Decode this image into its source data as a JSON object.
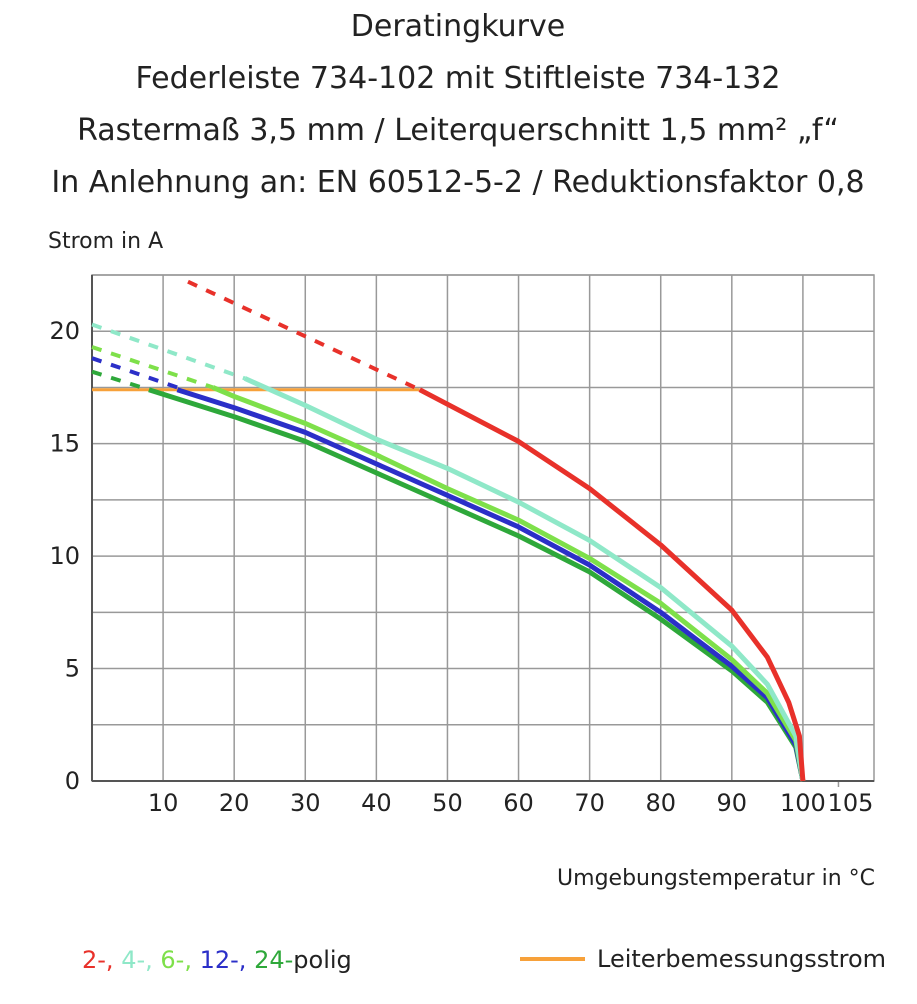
{
  "chart_data": {
    "type": "line",
    "title_lines": [
      "Deratingkurve",
      "Federleiste 734-102 mit Stiftleiste 734-132",
      "Rastermaß 3,5 mm / Leiterquerschnitt 1,5 mm² „f“",
      "In Anlehnung an: EN 60512-5-2 / Reduktionsfaktor 0,8"
    ],
    "ylabel": "Strom in A",
    "xlabel": "Umgebungstemperatur in °C",
    "xlim": [
      0,
      110
    ],
    "xticks": [
      10,
      20,
      30,
      40,
      50,
      60,
      70,
      80,
      90,
      100,
      105
    ],
    "ylim": [
      0,
      22.5
    ],
    "yticks": [
      0,
      5,
      10,
      15,
      20
    ],
    "yminor": [
      2.5,
      7.5,
      12.5,
      17.5,
      22.5
    ],
    "grid": true,
    "legend_suffix": "polig",
    "series": [
      {
        "name": "2-,",
        "color": "#e8312a",
        "dash_x": [
          13.5,
          46.1
        ],
        "dash_values": [
          22.2,
          17.4
        ],
        "x": [
          46.1,
          60,
          70,
          80,
          90,
          95,
          98,
          99.5,
          100
        ],
        "values": [
          17.4,
          15.1,
          13.0,
          10.5,
          7.6,
          5.5,
          3.5,
          2,
          0
        ]
      },
      {
        "name": "4-,",
        "color": "#8fe8c8",
        "dash_x": [
          0,
          21.5
        ],
        "dash_values": [
          20.3,
          17.9
        ],
        "x": [
          21.5,
          30,
          40,
          50,
          60,
          70,
          80,
          90,
          95,
          99,
          100
        ],
        "values": [
          17.9,
          16.7,
          15.2,
          13.9,
          12.4,
          10.7,
          8.6,
          6.0,
          4.3,
          2,
          0
        ]
      },
      {
        "name": "6-,",
        "color": "#7ee04a",
        "dash_x": [
          0,
          17
        ],
        "dash_values": [
          19.3,
          17.5
        ],
        "x": [
          17,
          20,
          30,
          40,
          50,
          60,
          70,
          80,
          90,
          95,
          99,
          100
        ],
        "values": [
          17.5,
          17.1,
          15.9,
          14.5,
          13.0,
          11.6,
          9.9,
          7.9,
          5.4,
          3.9,
          1.8,
          0
        ]
      },
      {
        "name": "12-,",
        "color": "#2b2fc8",
        "dash_x": [
          0,
          12
        ],
        "dash_values": [
          18.8,
          17.5
        ],
        "x": [
          12,
          20,
          30,
          40,
          50,
          60,
          70,
          80,
          90,
          95,
          99,
          100
        ],
        "values": [
          17.4,
          16.6,
          15.5,
          14.1,
          12.7,
          11.3,
          9.6,
          7.5,
          5.1,
          3.7,
          1.6,
          0
        ]
      },
      {
        "name": "24-",
        "color": "#2ea83a",
        "dash_x": [
          0,
          8
        ],
        "dash_values": [
          18.2,
          17.4
        ],
        "x": [
          8,
          20,
          30,
          40,
          50,
          60,
          70,
          80,
          90,
          95,
          99,
          100
        ],
        "values": [
          17.4,
          16.2,
          15.1,
          13.7,
          12.3,
          10.9,
          9.3,
          7.2,
          4.9,
          3.5,
          1.5,
          0
        ]
      }
    ],
    "reference": {
      "name": "Leiterbemessungsstrom",
      "color": "#f7a13a",
      "x": [
        0,
        46.1
      ],
      "values": [
        17.4,
        17.4
      ]
    }
  }
}
